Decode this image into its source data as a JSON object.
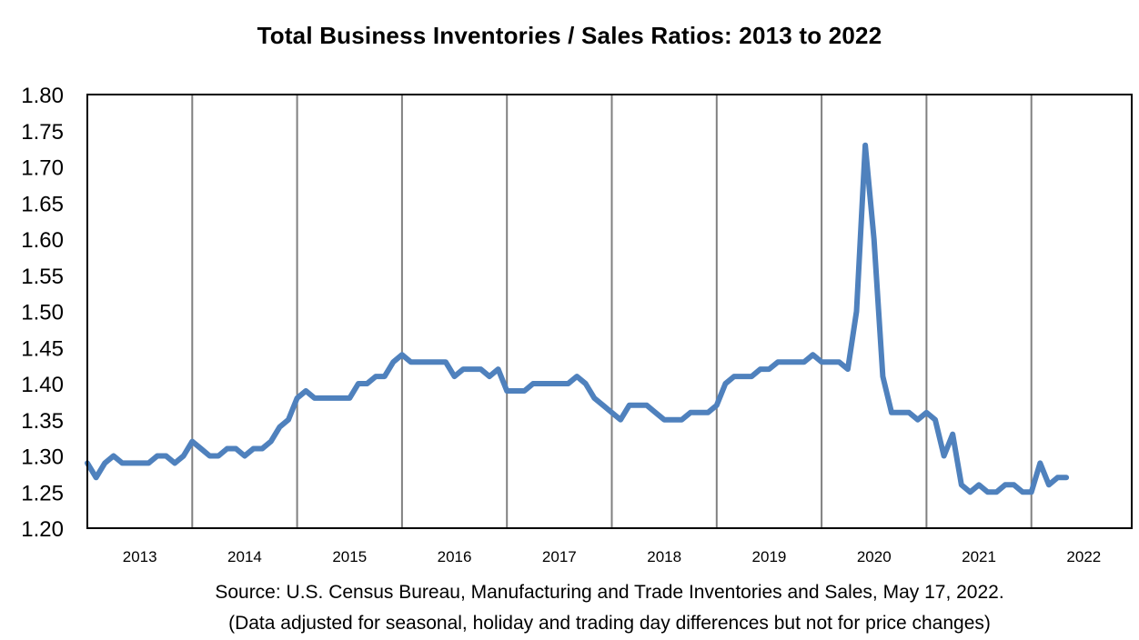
{
  "chart_data": {
    "type": "line",
    "title": "Total Business Inventories / Sales Ratios: 2013 to 2022",
    "xlabel": "",
    "ylabel": "",
    "ylim": [
      1.2,
      1.8
    ],
    "yticks": [
      "1.80",
      "1.75",
      "1.70",
      "1.65",
      "1.60",
      "1.55",
      "1.50",
      "1.45",
      "1.40",
      "1.35",
      "1.30",
      "1.25",
      "1.20"
    ],
    "years": [
      "2013",
      "2014",
      "2015",
      "2016",
      "2017",
      "2018",
      "2019",
      "2020",
      "2021",
      "2022"
    ],
    "grid": "vertical lines at year boundaries",
    "series": [
      {
        "color": "#4f81bd",
        "start": "2013-01",
        "frequency": "monthly",
        "values": [
          1.29,
          1.27,
          1.29,
          1.3,
          1.29,
          1.29,
          1.29,
          1.29,
          1.3,
          1.3,
          1.29,
          1.3,
          1.32,
          1.31,
          1.3,
          1.3,
          1.31,
          1.31,
          1.3,
          1.31,
          1.31,
          1.32,
          1.34,
          1.35,
          1.38,
          1.39,
          1.38,
          1.38,
          1.38,
          1.38,
          1.38,
          1.4,
          1.4,
          1.41,
          1.41,
          1.43,
          1.44,
          1.43,
          1.43,
          1.43,
          1.43,
          1.43,
          1.41,
          1.42,
          1.42,
          1.42,
          1.41,
          1.42,
          1.39,
          1.39,
          1.39,
          1.4,
          1.4,
          1.4,
          1.4,
          1.4,
          1.41,
          1.4,
          1.38,
          1.37,
          1.36,
          1.35,
          1.37,
          1.37,
          1.37,
          1.36,
          1.35,
          1.35,
          1.35,
          1.36,
          1.36,
          1.36,
          1.37,
          1.4,
          1.41,
          1.41,
          1.41,
          1.42,
          1.42,
          1.43,
          1.43,
          1.43,
          1.43,
          1.44,
          1.43,
          1.43,
          1.43,
          1.42,
          1.5,
          1.73,
          1.6,
          1.41,
          1.36,
          1.36,
          1.36,
          1.35,
          1.36,
          1.35,
          1.3,
          1.33,
          1.26,
          1.25,
          1.26,
          1.25,
          1.25,
          1.26,
          1.26,
          1.25,
          1.25,
          1.29,
          1.26,
          1.27,
          1.27
        ]
      }
    ],
    "colors": {
      "line": "#4f81bd",
      "grid": "#808080",
      "frame": "#000000"
    }
  },
  "source": {
    "line1": "Source: U.S. Census Bureau, Manufacturing and Trade Inventories and Sales, May 17, 2022.",
    "line2": "(Data adjusted for seasonal, holiday and trading day differences but not for price changes)"
  }
}
